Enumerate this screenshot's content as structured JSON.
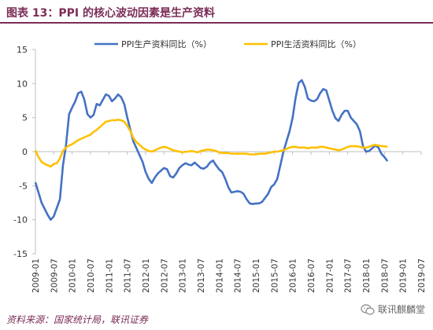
{
  "header": {
    "title": "图表 13：PPI 的核心波动因素是生产资料"
  },
  "footer": {
    "source": "资料来源：国家统计局，联讯证券",
    "watermark": "联讯麒麟堂",
    "watermark_icon": "wechat-icon"
  },
  "colors": {
    "title": "#7b2d57",
    "series1": "#4472c4",
    "series2": "#ffc000",
    "axis": "#bfbfbf"
  },
  "chart_data": {
    "type": "line",
    "title": "",
    "xlabel": "",
    "ylabel": "",
    "ylim": [
      -15,
      15
    ],
    "yticks": [
      -15,
      -10,
      -5,
      0,
      5,
      10,
      15
    ],
    "grid": false,
    "legend": "top",
    "xticks": [
      "2009-01",
      "2009-07",
      "2010-01",
      "2010-07",
      "2011-01",
      "2011-07",
      "2012-01",
      "2012-07",
      "2013-01",
      "2013-07",
      "2014-01",
      "2014-07",
      "2015-01",
      "2015-07",
      "2016-01",
      "2016-07",
      "2017-01",
      "2017-07",
      "2018-01",
      "2018-07",
      "2019-01",
      "2019-07"
    ],
    "series": [
      {
        "name": "PPI生产资料同比（%）",
        "color": "#4472c4",
        "values": [
          [
            0,
            -4.5
          ],
          [
            2,
            -7.5
          ],
          [
            4,
            -9.3
          ],
          [
            5,
            -10.0
          ],
          [
            6,
            -9.5
          ],
          [
            8,
            -7.0
          ],
          [
            9,
            -2.0
          ],
          [
            10,
            1.0
          ],
          [
            11,
            5.5
          ],
          [
            12,
            6.5
          ],
          [
            13,
            7.4
          ],
          [
            14,
            8.6
          ],
          [
            15,
            8.8
          ],
          [
            16,
            7.6
          ],
          [
            17,
            5.5
          ],
          [
            18,
            5.0
          ],
          [
            19,
            5.4
          ],
          [
            20,
            7.0
          ],
          [
            21,
            6.8
          ],
          [
            22,
            7.6
          ],
          [
            23,
            8.4
          ],
          [
            24,
            8.2
          ],
          [
            25,
            7.4
          ],
          [
            26,
            7.8
          ],
          [
            27,
            8.4
          ],
          [
            28,
            8.0
          ],
          [
            29,
            7.0
          ],
          [
            30,
            5.0
          ],
          [
            31,
            3.2
          ],
          [
            32,
            1.5
          ],
          [
            34,
            -0.5
          ],
          [
            35,
            -1.5
          ],
          [
            36,
            -3.0
          ],
          [
            37,
            -4.0
          ],
          [
            38,
            -4.6
          ],
          [
            39,
            -3.8
          ],
          [
            40,
            -3.2
          ],
          [
            41,
            -2.8
          ],
          [
            42,
            -2.4
          ],
          [
            43,
            -2.6
          ],
          [
            44,
            -3.6
          ],
          [
            45,
            -3.8
          ],
          [
            46,
            -3.2
          ],
          [
            47,
            -2.4
          ],
          [
            48,
            -2.0
          ],
          [
            49,
            -1.7
          ],
          [
            50,
            -1.9
          ],
          [
            51,
            -2.0
          ],
          [
            52,
            -1.6
          ],
          [
            53,
            -2.0
          ],
          [
            54,
            -2.4
          ],
          [
            55,
            -2.5
          ],
          [
            56,
            -2.2
          ],
          [
            57,
            -1.6
          ],
          [
            58,
            -1.3
          ],
          [
            59,
            -2.0
          ],
          [
            60,
            -2.6
          ],
          [
            61,
            -3.0
          ],
          [
            62,
            -4.0
          ],
          [
            63,
            -5.2
          ],
          [
            64,
            -6.0
          ],
          [
            65,
            -5.9
          ],
          [
            66,
            -5.8
          ],
          [
            67,
            -5.9
          ],
          [
            68,
            -6.2
          ],
          [
            69,
            -7.0
          ],
          [
            70,
            -7.6
          ],
          [
            71,
            -7.7
          ],
          [
            72,
            -7.6
          ],
          [
            73,
            -7.6
          ],
          [
            74,
            -7.4
          ],
          [
            75,
            -6.8
          ],
          [
            76,
            -6.2
          ],
          [
            77,
            -5.2
          ],
          [
            78,
            -4.8
          ],
          [
            79,
            -4.0
          ],
          [
            80,
            -2.0
          ],
          [
            81,
            0.0
          ],
          [
            82,
            1.5
          ],
          [
            83,
            3.0
          ],
          [
            84,
            5.0
          ],
          [
            85,
            8.0
          ],
          [
            86,
            10.1
          ],
          [
            87,
            10.5
          ],
          [
            88,
            9.5
          ],
          [
            89,
            7.8
          ],
          [
            90,
            7.5
          ],
          [
            91,
            7.4
          ],
          [
            92,
            7.7
          ],
          [
            93,
            8.6
          ],
          [
            94,
            9.2
          ],
          [
            95,
            9.0
          ],
          [
            96,
            7.5
          ],
          [
            97,
            6.0
          ],
          [
            98,
            4.9
          ],
          [
            99,
            4.5
          ],
          [
            100,
            5.4
          ],
          [
            101,
            6.0
          ],
          [
            102,
            6.0
          ],
          [
            103,
            5.0
          ],
          [
            104,
            4.5
          ],
          [
            105,
            4.0
          ],
          [
            106,
            3.0
          ],
          [
            107,
            0.8
          ],
          [
            108,
            0.0
          ],
          [
            109,
            0.1
          ],
          [
            110,
            0.5
          ],
          [
            111,
            0.9
          ],
          [
            112,
            0.6
          ],
          [
            113,
            -0.3
          ],
          [
            114,
            -0.8
          ],
          [
            115,
            -1.4
          ]
        ]
      },
      {
        "name": "PPI生活资料同比（%）",
        "color": "#ffc000",
        "values": [
          [
            0,
            0.2
          ],
          [
            1,
            -0.8
          ],
          [
            2,
            -1.5
          ],
          [
            3,
            -1.8
          ],
          [
            4,
            -2.0
          ],
          [
            5,
            -2.2
          ],
          [
            6,
            -1.8
          ],
          [
            7,
            -1.7
          ],
          [
            8,
            -1.0
          ],
          [
            9,
            0.1
          ],
          [
            10,
            0.6
          ],
          [
            11,
            0.9
          ],
          [
            12,
            1.1
          ],
          [
            13,
            1.4
          ],
          [
            14,
            1.7
          ],
          [
            15,
            1.9
          ],
          [
            16,
            2.1
          ],
          [
            17,
            2.3
          ],
          [
            18,
            2.5
          ],
          [
            19,
            2.9
          ],
          [
            20,
            3.2
          ],
          [
            21,
            3.6
          ],
          [
            22,
            4.0
          ],
          [
            23,
            4.4
          ],
          [
            24,
            4.5
          ],
          [
            25,
            4.6
          ],
          [
            26,
            4.6
          ],
          [
            27,
            4.7
          ],
          [
            28,
            4.6
          ],
          [
            29,
            4.4
          ],
          [
            30,
            3.8
          ],
          [
            31,
            3.0
          ],
          [
            32,
            2.0
          ],
          [
            33,
            1.4
          ],
          [
            34,
            1.0
          ],
          [
            35,
            0.6
          ],
          [
            36,
            0.3
          ],
          [
            37,
            0.1
          ],
          [
            38,
            0.0
          ],
          [
            39,
            0.2
          ],
          [
            40,
            0.4
          ],
          [
            41,
            0.6
          ],
          [
            42,
            0.7
          ],
          [
            43,
            0.6
          ],
          [
            44,
            0.4
          ],
          [
            45,
            0.2
          ],
          [
            46,
            0.1
          ],
          [
            47,
            0.0
          ],
          [
            48,
            -0.1
          ],
          [
            49,
            0.0
          ],
          [
            50,
            0.0
          ],
          [
            51,
            0.1
          ],
          [
            52,
            0.0
          ],
          [
            53,
            -0.1
          ],
          [
            54,
            0.1
          ],
          [
            55,
            0.2
          ],
          [
            56,
            0.3
          ],
          [
            57,
            0.3
          ],
          [
            58,
            0.2
          ],
          [
            59,
            0.1
          ],
          [
            60,
            -0.1
          ],
          [
            61,
            -0.2
          ],
          [
            62,
            -0.2
          ],
          [
            63,
            -0.2
          ],
          [
            64,
            -0.3
          ],
          [
            65,
            -0.3
          ],
          [
            66,
            -0.3
          ],
          [
            67,
            -0.3
          ],
          [
            68,
            -0.3
          ],
          [
            69,
            -0.3
          ],
          [
            70,
            -0.4
          ],
          [
            71,
            -0.4
          ],
          [
            72,
            -0.4
          ],
          [
            73,
            -0.3
          ],
          [
            74,
            -0.3
          ],
          [
            75,
            -0.3
          ],
          [
            76,
            -0.2
          ],
          [
            77,
            -0.1
          ],
          [
            78,
            0.0
          ],
          [
            79,
            0.0
          ],
          [
            80,
            0.1
          ],
          [
            81,
            0.2
          ],
          [
            82,
            0.4
          ],
          [
            83,
            0.6
          ],
          [
            84,
            0.7
          ],
          [
            85,
            0.7
          ],
          [
            86,
            0.6
          ],
          [
            87,
            0.6
          ],
          [
            88,
            0.6
          ],
          [
            89,
            0.5
          ],
          [
            90,
            0.6
          ],
          [
            91,
            0.6
          ],
          [
            92,
            0.6
          ],
          [
            93,
            0.7
          ],
          [
            94,
            0.7
          ],
          [
            95,
            0.6
          ],
          [
            96,
            0.5
          ],
          [
            97,
            0.4
          ],
          [
            98,
            0.3
          ],
          [
            99,
            0.2
          ],
          [
            100,
            0.3
          ],
          [
            101,
            0.5
          ],
          [
            102,
            0.7
          ],
          [
            103,
            0.8
          ],
          [
            104,
            0.8
          ],
          [
            105,
            0.8
          ],
          [
            106,
            0.7
          ],
          [
            107,
            0.6
          ],
          [
            108,
            0.6
          ],
          [
            109,
            0.7
          ],
          [
            110,
            0.9
          ],
          [
            111,
            1.0
          ],
          [
            112,
            0.9
          ],
          [
            113,
            0.8
          ],
          [
            114,
            0.8
          ],
          [
            115,
            0.7
          ]
        ]
      }
    ]
  }
}
